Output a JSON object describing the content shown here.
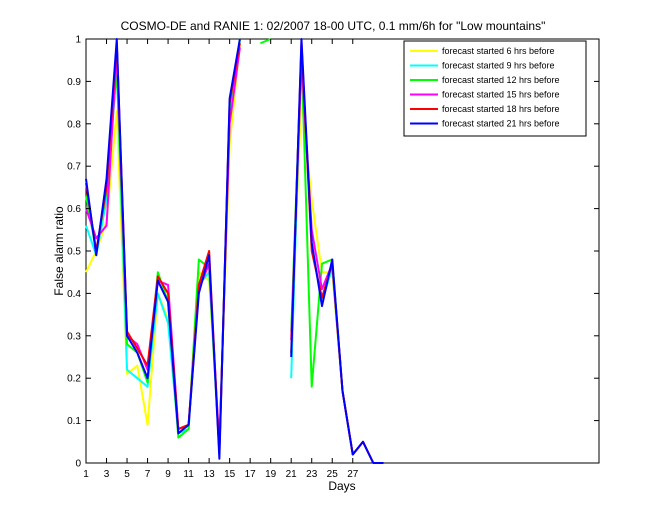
{
  "chart_data": {
    "type": "line",
    "title": "COSMO-DE and RANIE 1: 02/2007 18-00 UTC, 0.1 mm/6h for \"Low mountains\"",
    "xlabel": "Days",
    "ylabel": "False alarm ratio",
    "xlim": [
      1,
      51
    ],
    "ylim": [
      0,
      1
    ],
    "xticks": [
      1,
      3,
      5,
      7,
      9,
      11,
      13,
      15,
      17,
      19,
      21,
      23,
      25,
      27
    ],
    "yticks": [
      0,
      0.1,
      0.2,
      0.3,
      0.4,
      0.5,
      0.6,
      0.7,
      0.8,
      0.9,
      1
    ],
    "grid": false,
    "legend_position": "top-right",
    "series": [
      {
        "name": "forecast started 6 hrs before",
        "color": "#ffff00",
        "points": [
          [
            1,
            0.45
          ],
          [
            2,
            0.5
          ],
          [
            3,
            0.57
          ],
          [
            4,
            0.83
          ],
          [
            5,
            0.21
          ],
          [
            6,
            0.23
          ],
          [
            7,
            0.09
          ],
          [
            8,
            0.4
          ],
          [
            9,
            0.34
          ],
          [
            10,
            0.07
          ],
          [
            11,
            0.09
          ],
          [
            12,
            0.45
          ],
          [
            13,
            0.43
          ],
          [
            14,
            0.04
          ],
          [
            15,
            0.75
          ],
          [
            16,
            0.99
          ],
          [
            21,
            0.3
          ],
          [
            22,
            0.86
          ],
          [
            23,
            0.62
          ],
          [
            24,
            0.45
          ],
          [
            25,
            0.45
          ],
          [
            26,
            0.17
          ],
          [
            27,
            0.02
          ],
          [
            28,
            0.05
          ],
          [
            29,
            0
          ],
          [
            30,
            0
          ]
        ]
      },
      {
        "name": "forecast started 9 hrs before",
        "color": "#00ffff",
        "points": [
          [
            1,
            0.56
          ],
          [
            2,
            0.49
          ],
          [
            3,
            0.62
          ],
          [
            4,
            0.93
          ],
          [
            5,
            0.22
          ],
          [
            6,
            0.2
          ],
          [
            7,
            0.18
          ],
          [
            8,
            0.4
          ],
          [
            9,
            0.33
          ],
          [
            10,
            0.07
          ],
          [
            11,
            0.08
          ],
          [
            12,
            0.42
          ],
          [
            13,
            0.45
          ],
          [
            14,
            0.03
          ],
          [
            15,
            0.82
          ],
          [
            16,
            1
          ],
          [
            21,
            0.2
          ],
          [
            22,
            0.98
          ],
          [
            23,
            0.51
          ],
          [
            24,
            0.38
          ],
          [
            25,
            0.46
          ],
          [
            26,
            0.17
          ],
          [
            27,
            0.02
          ],
          [
            28,
            0.05
          ],
          [
            29,
            0
          ],
          [
            30,
            0
          ]
        ]
      },
      {
        "name": "forecast started 12 hrs before",
        "color": "#00ff00",
        "points": [
          [
            1,
            0.63
          ],
          [
            2,
            0.5
          ],
          [
            3,
            0.64
          ],
          [
            4,
            0.93
          ],
          [
            5,
            0.28
          ],
          [
            6,
            0.26
          ],
          [
            7,
            0.19
          ],
          [
            8,
            0.45
          ],
          [
            9,
            0.38
          ],
          [
            10,
            0.06
          ],
          [
            11,
            0.08
          ],
          [
            12,
            0.48
          ],
          [
            13,
            0.46
          ],
          [
            14,
            0.03
          ],
          [
            15,
            0.84
          ],
          [
            16,
            1
          ],
          [
            18,
            0.99
          ],
          [
            19,
            1
          ],
          [
            21,
            0.31
          ],
          [
            22,
            0.97
          ],
          [
            23,
            0.18
          ],
          [
            24,
            0.47
          ],
          [
            25,
            0.48
          ],
          [
            26,
            0.17
          ],
          [
            27,
            0.02
          ],
          [
            28,
            0.05
          ],
          [
            29,
            0
          ],
          [
            30,
            0
          ]
        ]
      },
      {
        "name": "forecast started 15 hrs before",
        "color": "#ff00ff",
        "points": [
          [
            1,
            0.6
          ],
          [
            2,
            0.53
          ],
          [
            3,
            0.56
          ],
          [
            4,
            0.97
          ],
          [
            5,
            0.3
          ],
          [
            6,
            0.28
          ],
          [
            7,
            0.22
          ],
          [
            8,
            0.43
          ],
          [
            9,
            0.42
          ],
          [
            10,
            0.08
          ],
          [
            11,
            0.09
          ],
          [
            12,
            0.41
          ],
          [
            13,
            0.47
          ],
          [
            14,
            0.04
          ],
          [
            15,
            0.8
          ],
          [
            16,
            0.98
          ],
          [
            21,
            0.29
          ],
          [
            22,
            0.95
          ],
          [
            23,
            0.55
          ],
          [
            24,
            0.41
          ],
          [
            25,
            0.47
          ],
          [
            26,
            0.17
          ],
          [
            27,
            0.02
          ],
          [
            28,
            0.05
          ],
          [
            29,
            0
          ],
          [
            30,
            0
          ]
        ]
      },
      {
        "name": "forecast started 18 hrs before",
        "color": "#ff0000",
        "points": [
          [
            1,
            0.66
          ],
          [
            2,
            0.5
          ],
          [
            3,
            0.65
          ],
          [
            4,
            0.99
          ],
          [
            5,
            0.31
          ],
          [
            6,
            0.27
          ],
          [
            7,
            0.23
          ],
          [
            8,
            0.44
          ],
          [
            9,
            0.4
          ],
          [
            10,
            0.08
          ],
          [
            11,
            0.09
          ],
          [
            12,
            0.42
          ],
          [
            13,
            0.5
          ],
          [
            14,
            0.02
          ],
          [
            15,
            0.85
          ],
          [
            16,
            0.99
          ],
          [
            21,
            0.26
          ],
          [
            22,
            0.99
          ],
          [
            23,
            0.5
          ],
          [
            24,
            0.39
          ],
          [
            25,
            0.47
          ],
          [
            26,
            0.17
          ],
          [
            27,
            0.02
          ],
          [
            28,
            0.05
          ],
          [
            29,
            0
          ],
          [
            30,
            0
          ]
        ]
      },
      {
        "name": "forecast started 21 hrs before",
        "color": "#0000ff",
        "points": [
          [
            1,
            0.67
          ],
          [
            2,
            0.49
          ],
          [
            3,
            0.67
          ],
          [
            4,
            1
          ],
          [
            5,
            0.3
          ],
          [
            6,
            0.26
          ],
          [
            7,
            0.2
          ],
          [
            8,
            0.43
          ],
          [
            9,
            0.38
          ],
          [
            10,
            0.07
          ],
          [
            11,
            0.09
          ],
          [
            12,
            0.4
          ],
          [
            13,
            0.49
          ],
          [
            14,
            0.01
          ],
          [
            15,
            0.86
          ],
          [
            16,
            1
          ],
          [
            21,
            0.25
          ],
          [
            22,
            1
          ],
          [
            23,
            0.52
          ],
          [
            24,
            0.37
          ],
          [
            25,
            0.48
          ],
          [
            26,
            0.17
          ],
          [
            27,
            0.02
          ],
          [
            28,
            0.05
          ],
          [
            29,
            0
          ],
          [
            30,
            0
          ]
        ]
      }
    ]
  }
}
